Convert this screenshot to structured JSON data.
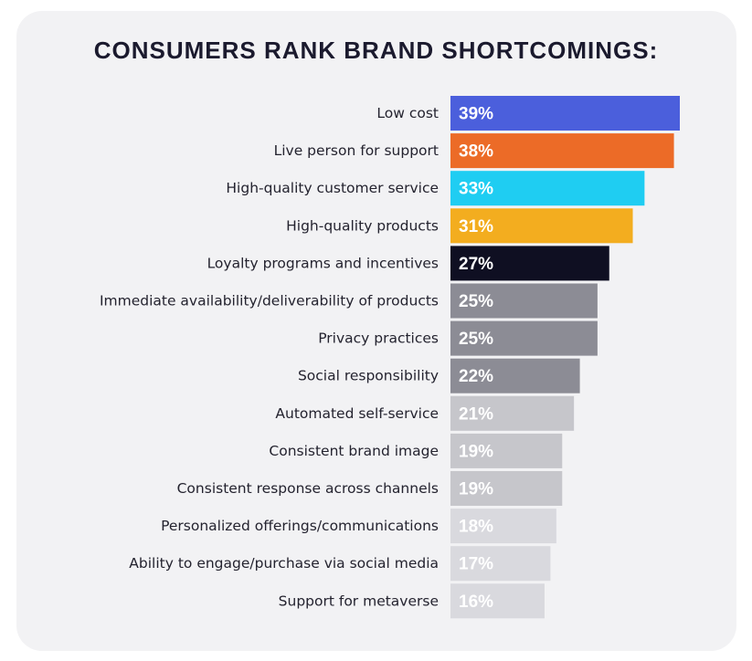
{
  "chart_data": {
    "type": "bar",
    "orientation": "horizontal",
    "title": "CONSUMERS RANK BRAND SHORTCOMINGS:",
    "categories": [
      "Low cost",
      "Live person for support",
      "High-quality customer service",
      "High-quality products",
      "Loyalty programs and incentives",
      "Immediate availability/deliverability of products",
      "Privacy practices",
      "Social responsibility",
      "Automated self-service",
      "Consistent brand image",
      "Consistent response across channels",
      "Personalized offerings/communications",
      "Ability to engage/purchase via social media",
      "Support for metaverse"
    ],
    "values": [
      39,
      38,
      33,
      31,
      27,
      25,
      25,
      22,
      21,
      19,
      19,
      18,
      17,
      16
    ],
    "value_labels": [
      "39%",
      "38%",
      "33%",
      "31%",
      "27%",
      "25%",
      "25%",
      "22%",
      "21%",
      "19%",
      "19%",
      "18%",
      "17%",
      "16%"
    ],
    "bar_colors": [
      "#4b5fdc",
      "#ec6b27",
      "#1fcdf2",
      "#f3ad1f",
      "#0f0f22",
      "#8c8c95",
      "#8c8c95",
      "#8c8c95",
      "#c6c6cb",
      "#c6c6cb",
      "#c6c6cb",
      "#d9d9de",
      "#d9d9de",
      "#d9d9de"
    ],
    "value_label_color": "#ffffff",
    "xlim": [
      0,
      39
    ],
    "grid": false,
    "legend": "none"
  }
}
